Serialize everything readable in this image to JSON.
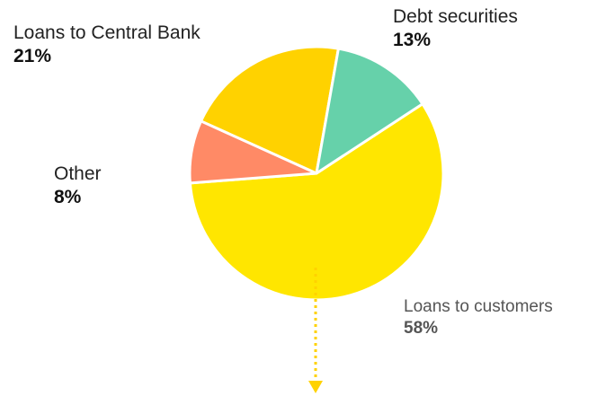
{
  "chart_data": {
    "type": "pie",
    "title": "",
    "slices": [
      {
        "label": "Loans to customers",
        "value": 58,
        "display": "58%",
        "color": "#FFE600"
      },
      {
        "label": "Other",
        "value": 8,
        "display": "8%",
        "color": "#FF8A66"
      },
      {
        "label": "Loans to Central Bank",
        "value": 21,
        "display": "21%",
        "color": "#FFD200"
      },
      {
        "label": "Debt securities",
        "value": 13,
        "display": "13%",
        "color": "#66D1AA"
      }
    ],
    "legend": "none",
    "annotation_arrow_color": "#FFD200"
  }
}
